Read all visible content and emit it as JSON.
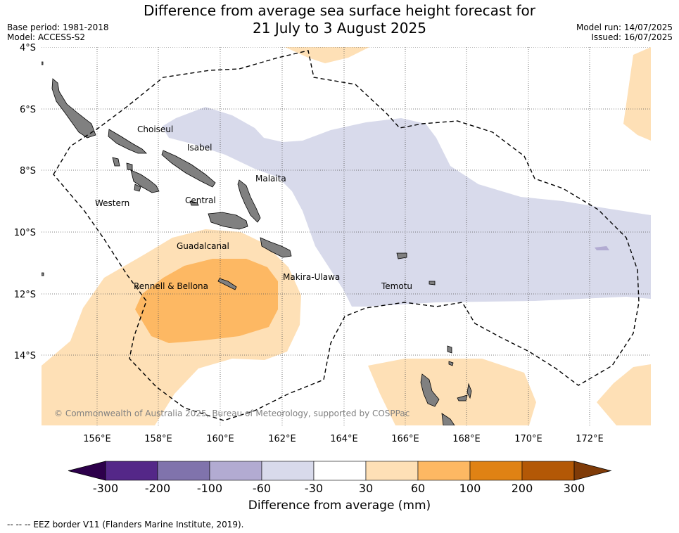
{
  "title_line1": "Difference from average sea surface height forecast for",
  "title_line2": "21 July to 3 August 2025",
  "base_period": "Base period: 1981-2018",
  "model": "Model: ACCESS-S2",
  "model_run": "Model run: 14/07/2025",
  "issued": "Issued: 16/07/2025",
  "lat_labels": [
    "4°S",
    "6°S",
    "8°S",
    "10°S",
    "12°S",
    "14°S"
  ],
  "lon_labels": [
    "156°E",
    "158°E",
    "160°E",
    "162°E",
    "164°E",
    "166°E",
    "168°E",
    "170°E",
    "172°E"
  ],
  "provinces": [
    "Choiseul",
    "Isabel",
    "Malaita",
    "Western",
    "Central",
    "Guadalcanal",
    "Makira-Ulawa",
    "Rennell & Bellona",
    "Temotu"
  ],
  "copyright": "© Commonwealth of Australia 2025, Bureau of Meteorology, supported by COSPPac",
  "colorbar": {
    "title": "Difference from average (mm)",
    "ticks": [
      "-300",
      "-200",
      "-100",
      "-60",
      "-30",
      "30",
      "60",
      "100",
      "200",
      "300"
    ],
    "colors": [
      "#2d004b",
      "#542788",
      "#8073ac",
      "#b2abd2",
      "#d8daeb",
      "#ffffff",
      "#fee0b6",
      "#fdb863",
      "#e08214",
      "#b35806",
      "#7f3b08"
    ]
  },
  "eez_note": "--  --  -- EEZ border V11 (Flanders Marine Institute, 2019)."
}
